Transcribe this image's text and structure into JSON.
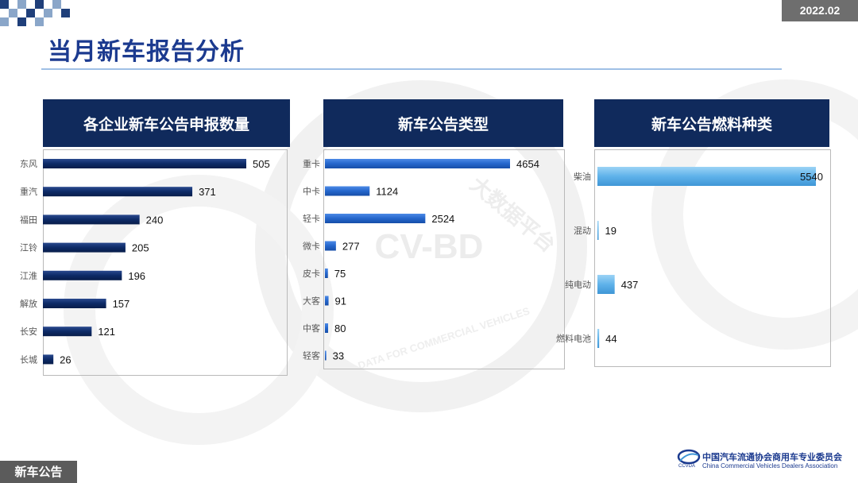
{
  "header": {
    "date": "2022.02",
    "title": "当月新车报告分析"
  },
  "footer": {
    "section_tag": "新车公告"
  },
  "logo": {
    "cn": "中国汽车流通协会商用车专业委员会",
    "en": "China Commercial Vehicles Dealers Association",
    "abbr": "CCVDA"
  },
  "watermark": {
    "text": "CV-BD",
    "arc_text": "DATA FOR COMMERCIAL VEHICLES",
    "side_text": "大数据平台"
  },
  "colors": {
    "navy": "#102a5c",
    "title_blue": "#1b3a8f",
    "bar_navy": "#0d2a66",
    "bar_blue": "#2466cc",
    "bar_light": "#5fb2ea"
  },
  "chart_data": [
    {
      "type": "bar",
      "orientation": "horizontal",
      "title": "各企业新车公告申报数量",
      "categories": [
        "东风",
        "重汽",
        "福田",
        "江铃",
        "江淮",
        "解放",
        "长安",
        "长城"
      ],
      "values": [
        505,
        371,
        240,
        205,
        196,
        157,
        121,
        26
      ],
      "ylim": [
        0,
        600
      ]
    },
    {
      "type": "bar",
      "orientation": "horizontal",
      "title": "新车公告类型",
      "categories": [
        "重卡",
        "中卡",
        "轻卡",
        "微卡",
        "皮卡",
        "大客",
        "中客",
        "轻客"
      ],
      "values": [
        4654,
        1124,
        2524,
        277,
        75,
        91,
        80,
        33
      ],
      "ylim": [
        0,
        6000
      ]
    },
    {
      "type": "bar",
      "orientation": "horizontal",
      "title": "新车公告燃料种类",
      "categories": [
        "柴油",
        "混动",
        "纯电动",
        "燃料电池"
      ],
      "values": [
        5540,
        19,
        437,
        44
      ],
      "ylim": [
        0,
        6000
      ]
    }
  ]
}
